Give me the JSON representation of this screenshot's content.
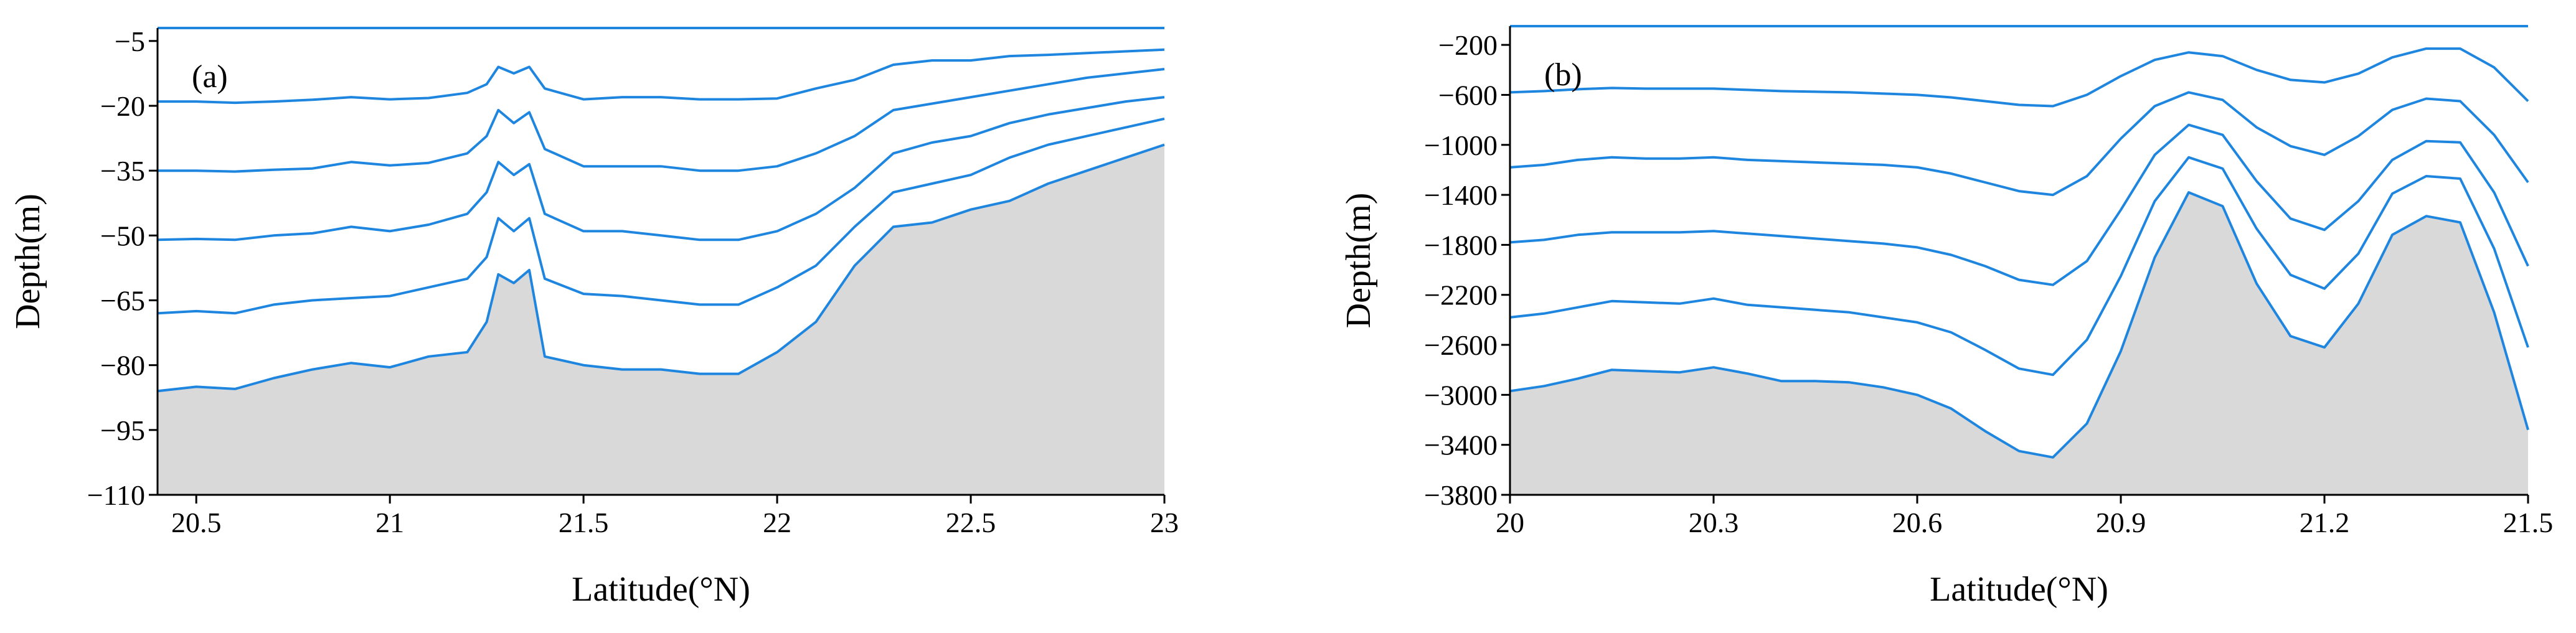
{
  "chart_data": [
    {
      "type": "line",
      "panel_label": "(a)",
      "xlabel": "Latitude(°N)",
      "ylabel": "Depth(m)",
      "xlim": [
        20.4,
        23
      ],
      "ylim": [
        -110,
        -2
      ],
      "xticks": [
        20.5,
        21,
        21.5,
        22,
        22.5,
        23
      ],
      "yticks": [
        -5,
        -20,
        -35,
        -50,
        -65,
        -80,
        -95,
        -110
      ],
      "xtick_labels": [
        "20.5",
        "21",
        "21.5",
        "22",
        "22.5",
        "23"
      ],
      "ytick_labels": [
        "-5",
        "-20",
        "-35",
        "-50",
        "-65",
        "-80",
        "-95",
        "-110"
      ],
      "line_color": "#1f86e0",
      "fill_color": "#d9d9d9",
      "x": [
        20.4,
        20.5,
        20.6,
        20.7,
        20.8,
        20.9,
        21.0,
        21.1,
        21.2,
        21.25,
        21.28,
        21.32,
        21.36,
        21.4,
        21.5,
        21.6,
        21.7,
        21.8,
        21.9,
        22.0,
        22.1,
        22.2,
        22.3,
        22.4,
        22.5,
        22.6,
        22.7,
        22.8,
        22.9,
        23.0
      ],
      "series": [
        {
          "values": [
            -2,
            -2,
            -2,
            -2,
            -2,
            -2,
            -2,
            -2,
            -2,
            -2,
            -2,
            -2,
            -2,
            -2,
            -2,
            -2,
            -2,
            -2,
            -2,
            -2,
            -2,
            -2,
            -2,
            -2,
            -2,
            -2,
            -2,
            -2,
            -2,
            -2
          ]
        },
        {
          "values": [
            -19,
            -19,
            -19.3,
            -19,
            -18.6,
            -18,
            -18.5,
            -18.2,
            -17,
            -15,
            -11,
            -12.5,
            -11,
            -16,
            -18.5,
            -18,
            -18,
            -18.5,
            -18.5,
            -18.3,
            -16,
            -14,
            -10.5,
            -9.5,
            -9.5,
            -8.5,
            -8.2,
            -7.8,
            -7.4,
            -7
          ]
        },
        {
          "values": [
            -35,
            -35,
            -35.2,
            -34.8,
            -34.5,
            -33,
            -33.8,
            -33.2,
            -31,
            -27,
            -21,
            -24,
            -21.5,
            -30,
            -34,
            -34,
            -34,
            -35,
            -35,
            -34,
            -31,
            -27,
            -21,
            -19.5,
            -18,
            -16.5,
            -15,
            -13.5,
            -12.5,
            -11.5
          ]
        },
        {
          "values": [
            -51,
            -50.8,
            -51,
            -50,
            -49.5,
            -48,
            -49,
            -47.5,
            -45,
            -40,
            -33,
            -36,
            -33.5,
            -45,
            -49,
            -49,
            -50,
            -51,
            -51,
            -49,
            -45,
            -39,
            -31,
            -28.5,
            -27,
            -24,
            -22,
            -20.5,
            -19,
            -18
          ]
        },
        {
          "values": [
            -68,
            -67.5,
            -68,
            -66,
            -65,
            -64.5,
            -64,
            -62,
            -60,
            -55,
            -46,
            -49,
            -46,
            -60,
            -63.5,
            -64,
            -65,
            -66,
            -66,
            -62,
            -57,
            -48,
            -40,
            -38,
            -36,
            -32,
            -29,
            -27,
            -25,
            -23
          ]
        },
        {
          "values": [
            -86,
            -85,
            -85.5,
            -83,
            -81,
            -79.5,
            -80.5,
            -78,
            -77,
            -70,
            -59,
            -61,
            -58,
            -78,
            -80,
            -81,
            -81,
            -82,
            -82,
            -77,
            -70,
            -57,
            -48,
            -47,
            -44,
            -42,
            -38,
            -35,
            -32,
            -29
          ]
        }
      ]
    },
    {
      "type": "line",
      "panel_label": "(b)",
      "xlabel": "Latitude(°N)",
      "ylabel": "Depth(m)",
      "xlim": [
        20,
        21.5
      ],
      "ylim": [
        -3800,
        -50
      ],
      "xticks": [
        20,
        20.3,
        20.6,
        20.9,
        21.2,
        21.5
      ],
      "yticks": [
        -200,
        -600,
        -1000,
        -1400,
        -1800,
        -2200,
        -2600,
        -3000,
        -3400,
        -3800
      ],
      "xtick_labels": [
        "20",
        "20.3",
        "20.6",
        "20.9",
        "21.2",
        "21.5"
      ],
      "ytick_labels": [
        "-200",
        "-600",
        "-1000",
        "-1400",
        "-1800",
        "-2200",
        "-2600",
        "-3000",
        "-3400",
        "-3800"
      ],
      "line_color": "#1f86e0",
      "fill_color": "#d9d9d9",
      "x": [
        20.0,
        20.05,
        20.1,
        20.15,
        20.2,
        20.25,
        20.3,
        20.35,
        20.4,
        20.45,
        20.5,
        20.55,
        20.6,
        20.65,
        20.7,
        20.75,
        20.8,
        20.85,
        20.9,
        20.95,
        21.0,
        21.05,
        21.1,
        21.15,
        21.2,
        21.25,
        21.3,
        21.35,
        21.4,
        21.45,
        21.5
      ],
      "series": [
        {
          "values": [
            -50,
            -50,
            -50,
            -50,
            -50,
            -50,
            -50,
            -50,
            -50,
            -50,
            -50,
            -50,
            -50,
            -50,
            -50,
            -50,
            -50,
            -50,
            -50,
            -50,
            -50,
            -50,
            -50,
            -50,
            -50,
            -50,
            -50,
            -50,
            -50,
            -50,
            -50
          ]
        },
        {
          "values": [
            -580,
            -570,
            -555,
            -545,
            -550,
            -550,
            -550,
            -560,
            -570,
            -575,
            -580,
            -590,
            -600,
            -620,
            -650,
            -680,
            -690,
            -600,
            -450,
            -320,
            -260,
            -290,
            -400,
            -480,
            -500,
            -430,
            -300,
            -230,
            -230,
            -380,
            -650
          ]
        },
        {
          "values": [
            -1180,
            -1160,
            -1120,
            -1100,
            -1110,
            -1110,
            -1100,
            -1120,
            -1130,
            -1140,
            -1150,
            -1160,
            -1180,
            -1230,
            -1300,
            -1370,
            -1400,
            -1250,
            -950,
            -690,
            -580,
            -640,
            -860,
            -1010,
            -1080,
            -930,
            -720,
            -630,
            -650,
            -920,
            -1300
          ]
        },
        {
          "values": [
            -1780,
            -1760,
            -1720,
            -1700,
            -1700,
            -1700,
            -1690,
            -1710,
            -1730,
            -1750,
            -1770,
            -1790,
            -1820,
            -1880,
            -1970,
            -2080,
            -2120,
            -1930,
            -1520,
            -1080,
            -840,
            -920,
            -1290,
            -1590,
            -1680,
            -1450,
            -1120,
            -970,
            -980,
            -1380,
            -1970
          ]
        },
        {
          "values": [
            -2380,
            -2350,
            -2300,
            -2250,
            -2260,
            -2270,
            -2230,
            -2280,
            -2300,
            -2320,
            -2340,
            -2380,
            -2420,
            -2500,
            -2640,
            -2790,
            -2840,
            -2560,
            -2050,
            -1450,
            -1100,
            -1190,
            -1670,
            -2040,
            -2150,
            -1870,
            -1390,
            -1250,
            -1270,
            -1830,
            -2620
          ]
        },
        {
          "values": [
            -2970,
            -2930,
            -2870,
            -2800,
            -2810,
            -2820,
            -2780,
            -2830,
            -2890,
            -2890,
            -2900,
            -2940,
            -3000,
            -3110,
            -3290,
            -3450,
            -3500,
            -3230,
            -2650,
            -1900,
            -1380,
            -1490,
            -2110,
            -2530,
            -2620,
            -2270,
            -1720,
            -1570,
            -1620,
            -2340,
            -3280
          ]
        }
      ]
    }
  ]
}
